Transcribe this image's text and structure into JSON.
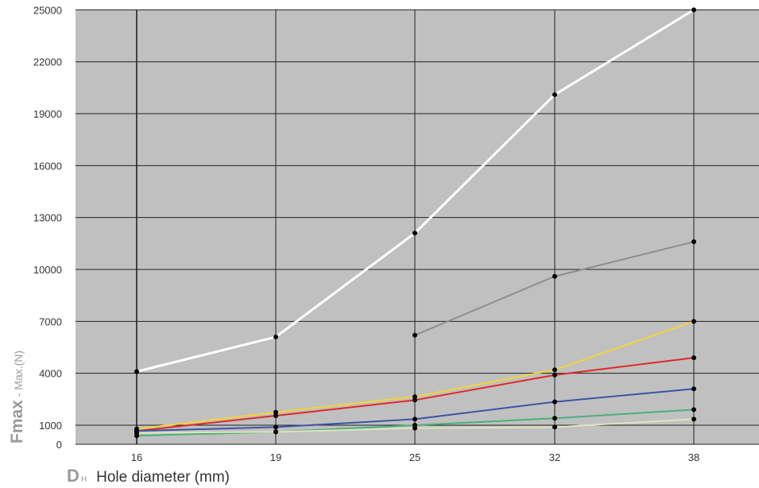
{
  "chart_data": {
    "type": "line",
    "title": "",
    "x": [
      16,
      19,
      25,
      32,
      38
    ],
    "x_tick_labels": [
      "16",
      "19",
      "25",
      "32",
      "38"
    ],
    "y_tick_values": [
      0,
      1000,
      4000,
      7000,
      10000,
      13000,
      16000,
      19000,
      22000,
      25000
    ],
    "y_tick_labels": [
      "0",
      "1000",
      "4000",
      "7000",
      "10000",
      "13000",
      "16000",
      "19000",
      "22000",
      "25000"
    ],
    "ylim": [
      0,
      25000
    ],
    "xlabel": {
      "symbol": "D",
      "subscript": "H",
      "text": "Hole diameter (mm)"
    },
    "ylabel": {
      "symbol": "Fmax",
      "text": " - Max.(N)"
    },
    "grid": true,
    "background_color": "#c0c0c0",
    "series": [
      {
        "color": "#ffffff",
        "x": [
          16,
          19,
          25,
          32,
          38
        ],
        "values": [
          4100,
          6100,
          12100,
          20100,
          25000
        ]
      },
      {
        "color": "#8e8e8e",
        "x": [
          25,
          32,
          38
        ],
        "values": [
          6200,
          9600,
          11600
        ]
      },
      {
        "color": "#f2d43a",
        "x": [
          16,
          19,
          25,
          32,
          38
        ],
        "values": [
          800,
          1750,
          2650,
          4200,
          7000
        ]
      },
      {
        "color": "#e0282a",
        "x": [
          16,
          19,
          25,
          32,
          38
        ],
        "values": [
          700,
          1550,
          2450,
          3900,
          4900
        ]
      },
      {
        "color": "#3a55a5",
        "x": [
          16,
          19,
          25,
          32,
          38
        ],
        "values": [
          700,
          900,
          1350,
          2350,
          3100
        ]
      },
      {
        "color": "#4bb07a",
        "x": [
          16,
          19,
          25,
          32,
          38
        ],
        "values": [
          450,
          650,
          1000,
          1400,
          1900
        ]
      },
      {
        "color": "#dde4bf",
        "x": [
          16,
          19,
          25,
          32,
          38
        ],
        "values": [
          600,
          650,
          850,
          900,
          1350
        ]
      }
    ]
  }
}
